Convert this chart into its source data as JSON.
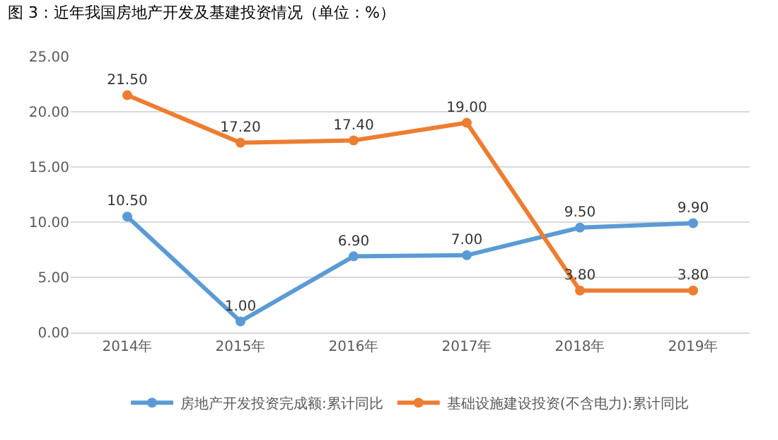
{
  "chart_data": {
    "type": "line",
    "title": "图 3：近年我国房地产开发及基建投资情况（单位：%）",
    "categories": [
      "2014年",
      "2015年",
      "2016年",
      "2017年",
      "2018年",
      "2019年"
    ],
    "series": [
      {
        "name": "房地产开发投资完成额:累计同比",
        "color": "#5b9bd5",
        "values": [
          10.5,
          1.0,
          6.9,
          7.0,
          9.5,
          9.9
        ],
        "value_labels": [
          "10.50",
          "1.00",
          "6.90",
          "7.00",
          "9.50",
          "9.90"
        ]
      },
      {
        "name": "基础设施建设投资(不含电力):累计同比",
        "color": "#ed7d31",
        "values": [
          21.5,
          17.2,
          17.4,
          19.0,
          3.8,
          3.8
        ],
        "value_labels": [
          "21.50",
          "17.20",
          "17.40",
          "19.00",
          "3.80",
          "3.80"
        ]
      }
    ],
    "ylim": [
      0,
      25
    ],
    "yticks": [
      {
        "value": 0,
        "label": "0.00"
      },
      {
        "value": 5,
        "label": "5.00"
      },
      {
        "value": 10,
        "label": "10.00"
      },
      {
        "value": 15,
        "label": "15.00"
      },
      {
        "value": 20,
        "label": "20.00"
      },
      {
        "value": 25,
        "label": "25.00"
      }
    ],
    "grid": "y",
    "legend": "bottom",
    "marker": "circle",
    "line_style": "solid"
  }
}
